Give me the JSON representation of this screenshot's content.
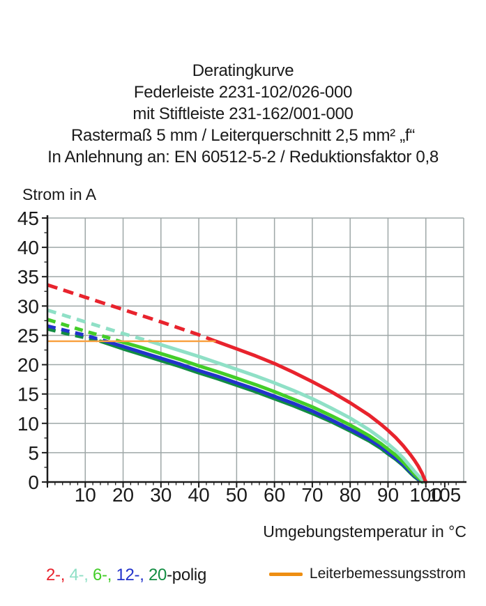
{
  "title_lines": [
    "Deratingkurve",
    "Federleiste 2231-102/026-000",
    "mit Stiftleiste 231-162/001-000",
    "Rastermaß 5 mm / Leiterquerschnitt 2,5 mm² „f“",
    "In Anlehnung an: EN 60512-5-2 / Reduktionsfaktor 0,8"
  ],
  "colors": {
    "text": "#1a1a1a",
    "axis": "#1a1a1a",
    "grid": "#9ea7a7",
    "red_2polig": "#e8232d",
    "mint_4polig": "#8fe0c6",
    "green_6polig": "#43cd28",
    "blue_12polig": "#2233cb",
    "darkgreen_20polig": "#128c42",
    "orange_rated": "#f9a243"
  },
  "legend": {
    "pole_parts": [
      {
        "text": "2-, ",
        "color": "#e8232d"
      },
      {
        "text": "4-, ",
        "color": "#8fe0c6"
      },
      {
        "text": "6-, ",
        "color": "#43cd28"
      },
      {
        "text": "12-, ",
        "color": "#2233cb"
      },
      {
        "text": "20",
        "color": "#128c42"
      },
      {
        "text": "-polig",
        "color": "#1a1a1a"
      }
    ],
    "rated_current_label": "Leiterbemessungsstrom",
    "rated_current_color": "#ee8e12"
  },
  "chart_data": {
    "type": "line",
    "title": "Deratingkurve",
    "xlabel": "Umgebungstemperatur in °C",
    "ylabel": "Strom in A",
    "xlim": [
      0,
      110
    ],
    "ylim": [
      0,
      45
    ],
    "grid": true,
    "x_gridlines": [
      10,
      20,
      30,
      40,
      50,
      60,
      70,
      80,
      90,
      100
    ],
    "x_tick_labels": [
      10,
      20,
      30,
      40,
      50,
      60,
      70,
      80,
      90,
      100,
      105
    ],
    "x_minor_step": 2,
    "y_major_step": 5,
    "y_minor_step": 2.5,
    "rated_current": {
      "label": "Leiterbemessungsstrom",
      "value": 24,
      "t_start": 0,
      "t_end": 44.5,
      "color": "#f9a243"
    },
    "line_style_note": "curves are dashed while above the 24 A rated-current line, solid below it",
    "series": [
      {
        "name": "2-polig",
        "color": "#e8232d",
        "width": 5,
        "dash": "15 9",
        "solid_from": 44.5,
        "points": [
          [
            0,
            33.6
          ],
          [
            10,
            31.5
          ],
          [
            20,
            29.4
          ],
          [
            30,
            27.3
          ],
          [
            40,
            25.1
          ],
          [
            44.5,
            24
          ],
          [
            50,
            22.7
          ],
          [
            55,
            21.5
          ],
          [
            60,
            20.2
          ],
          [
            65,
            18.7
          ],
          [
            70,
            17.1
          ],
          [
            75,
            15.4
          ],
          [
            80,
            13.5
          ],
          [
            85,
            11.4
          ],
          [
            88,
            9.9
          ],
          [
            90,
            8.8
          ],
          [
            92,
            7.6
          ],
          [
            94,
            6.2
          ],
          [
            96,
            4.6
          ],
          [
            97,
            3.7
          ],
          [
            98,
            2.7
          ],
          [
            99,
            1.5
          ],
          [
            99.6,
            0.6
          ],
          [
            100,
            0
          ]
        ]
      },
      {
        "name": "4-polig",
        "color": "#8fe0c6",
        "width": 5,
        "dash": "13 9",
        "solid_from": 27,
        "points": [
          [
            0,
            29.3
          ],
          [
            5,
            28.3
          ],
          [
            10,
            27.3
          ],
          [
            15,
            26.3
          ],
          [
            20,
            25.3
          ],
          [
            27,
            24
          ],
          [
            30,
            23.4
          ],
          [
            35,
            22.4
          ],
          [
            40,
            21.4
          ],
          [
            45,
            20.3
          ],
          [
            50,
            19.2
          ],
          [
            55,
            18.1
          ],
          [
            60,
            16.9
          ],
          [
            65,
            15.6
          ],
          [
            70,
            14.2
          ],
          [
            75,
            12.6
          ],
          [
            80,
            10.9
          ],
          [
            85,
            8.9
          ],
          [
            88,
            7.5
          ],
          [
            90,
            6.5
          ],
          [
            92,
            5.4
          ],
          [
            94,
            4.1
          ],
          [
            96,
            2.6
          ],
          [
            97,
            1.8
          ],
          [
            98,
            1.1
          ],
          [
            99,
            0.4
          ],
          [
            99.5,
            0
          ]
        ]
      },
      {
        "name": "6-polig",
        "color": "#43cd28",
        "width": 5,
        "dash": "12 8.5",
        "solid_from": 19,
        "points": [
          [
            0,
            27.7
          ],
          [
            5,
            26.7
          ],
          [
            10,
            25.7
          ],
          [
            15,
            24.8
          ],
          [
            19,
            24
          ],
          [
            25,
            22.9
          ],
          [
            30,
            21.9
          ],
          [
            35,
            20.9
          ],
          [
            40,
            19.8
          ],
          [
            45,
            18.8
          ],
          [
            50,
            17.7
          ],
          [
            55,
            16.6
          ],
          [
            60,
            15.4
          ],
          [
            65,
            14.1
          ],
          [
            70,
            12.8
          ],
          [
            75,
            11.3
          ],
          [
            80,
            9.7
          ],
          [
            85,
            7.9
          ],
          [
            88,
            6.6
          ],
          [
            90,
            5.6
          ],
          [
            92,
            4.6
          ],
          [
            94,
            3.4
          ],
          [
            96,
            2.0
          ],
          [
            97,
            1.3
          ],
          [
            98,
            0.7
          ],
          [
            99,
            0.2
          ],
          [
            99.3,
            0
          ]
        ]
      },
      {
        "name": "12-polig",
        "color": "#2233cb",
        "width": 5,
        "dash": "12 8.5",
        "solid_from": 15.5,
        "points": [
          [
            0,
            26.6
          ],
          [
            5,
            25.8
          ],
          [
            10,
            25.0
          ],
          [
            15.5,
            24
          ],
          [
            20,
            23.1
          ],
          [
            25,
            22.1
          ],
          [
            30,
            21.1
          ],
          [
            35,
            20.1
          ],
          [
            40,
            19.0
          ],
          [
            45,
            18.0
          ],
          [
            50,
            16.9
          ],
          [
            55,
            15.8
          ],
          [
            60,
            14.6
          ],
          [
            65,
            13.4
          ],
          [
            70,
            12.1
          ],
          [
            75,
            10.6
          ],
          [
            80,
            9.0
          ],
          [
            85,
            7.3
          ],
          [
            88,
            6.1
          ],
          [
            90,
            5.1
          ],
          [
            92,
            4.1
          ],
          [
            94,
            3.0
          ],
          [
            96,
            1.7
          ],
          [
            97,
            1.1
          ],
          [
            98,
            0.5
          ],
          [
            99.2,
            0
          ]
        ]
      },
      {
        "name": "20-polig",
        "color": "#128c42",
        "width": 5,
        "dash": "12 8.5",
        "solid_from": 14,
        "points": [
          [
            0,
            26.1
          ],
          [
            5,
            25.3
          ],
          [
            10,
            24.6
          ],
          [
            14,
            24
          ],
          [
            20,
            22.7
          ],
          [
            25,
            21.7
          ],
          [
            30,
            20.7
          ],
          [
            35,
            19.7
          ],
          [
            40,
            18.6
          ],
          [
            45,
            17.6
          ],
          [
            50,
            16.5
          ],
          [
            55,
            15.4
          ],
          [
            60,
            14.2
          ],
          [
            65,
            13.0
          ],
          [
            70,
            11.7
          ],
          [
            75,
            10.3
          ],
          [
            80,
            8.7
          ],
          [
            85,
            7.0
          ],
          [
            88,
            5.8
          ],
          [
            90,
            4.8
          ],
          [
            92,
            3.9
          ],
          [
            94,
            2.8
          ],
          [
            96,
            1.5
          ],
          [
            97,
            0.9
          ],
          [
            98,
            0.4
          ],
          [
            99.1,
            0
          ]
        ]
      }
    ]
  }
}
